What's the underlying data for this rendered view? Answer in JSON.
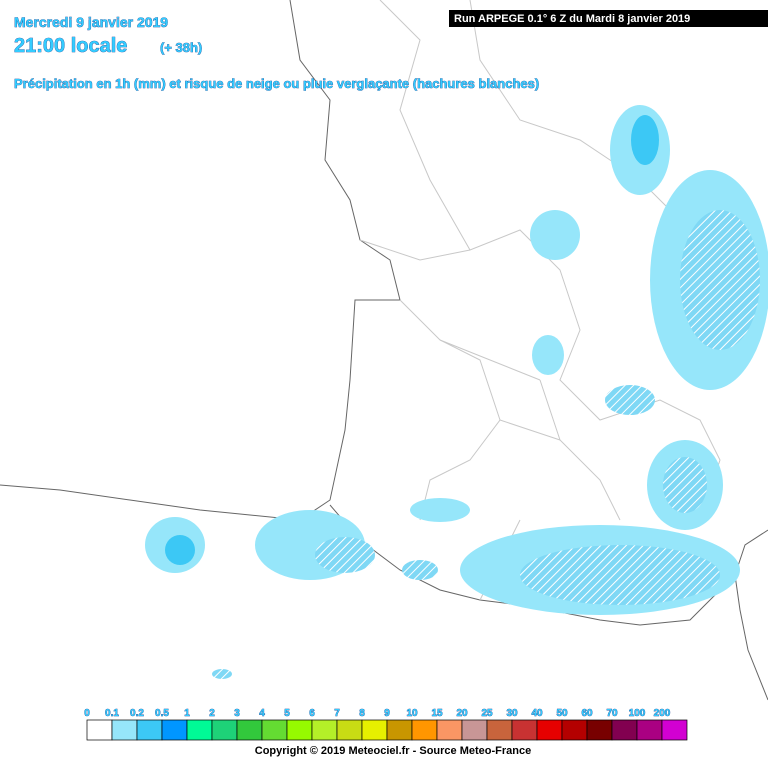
{
  "header": {
    "date": "Mercredi 9 janvier 2019",
    "time": "21:00 locale",
    "lead": "(+ 38h)",
    "subtitle": "Précipitation en 1h (mm) et risque de neige ou pluie verglaçante (hachures blanches)",
    "run": "Run ARPEGE 0.1° 6 Z du Mardi 8 janvier 2019"
  },
  "legend": {
    "ticks": [
      0,
      0.1,
      0.2,
      0.5,
      1,
      2,
      3,
      4,
      5,
      6,
      7,
      8,
      9,
      10,
      15,
      20,
      25,
      30,
      40,
      50,
      60,
      70,
      100,
      200
    ],
    "colors": [
      "#ffffff",
      "#96e6fa",
      "#3cc8f5",
      "#0096ff",
      "#00fa96",
      "#1ed278",
      "#32c83c",
      "#64dc32",
      "#96fa00",
      "#b4f028",
      "#c8dc14",
      "#e6f000",
      "#c89600",
      "#ff9600",
      "#fa9664",
      "#c89696",
      "#c8643c",
      "#c83232",
      "#e60000",
      "#b40000",
      "#780000",
      "#820050",
      "#aa0082",
      "#d200d2"
    ]
  },
  "footer": {
    "copyright": "Copyright © 2019 Meteociel.fr - Source Meteo-France"
  }
}
